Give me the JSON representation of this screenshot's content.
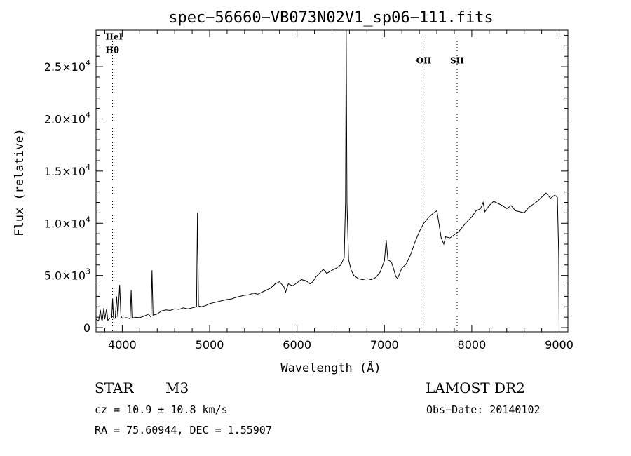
{
  "chart_data": {
    "type": "line",
    "title": "spec−56660−VB073N02V1_sp06−111.fits",
    "xlabel": "Wavelength (Å)",
    "ylabel": "Flux (relative)",
    "xlim": [
      3700,
      9100
    ],
    "ylim": [
      -400,
      28500
    ],
    "x_ticks": [
      {
        "value": 4000,
        "label": "4000"
      },
      {
        "value": 5000,
        "label": "5000"
      },
      {
        "value": 6000,
        "label": "6000"
      },
      {
        "value": 7000,
        "label": "7000"
      },
      {
        "value": 8000,
        "label": "8000"
      },
      {
        "value": 9000,
        "label": "9000"
      }
    ],
    "y_ticks": [
      {
        "value": 0,
        "mantissa": "0",
        "exponent": ""
      },
      {
        "value": 5000,
        "mantissa": "5.0×10",
        "exponent": "3"
      },
      {
        "value": 10000,
        "mantissa": "1.0×10",
        "exponent": "4"
      },
      {
        "value": 15000,
        "mantissa": "1.5×10",
        "exponent": "4"
      },
      {
        "value": 20000,
        "mantissa": "2.0×10",
        "exponent": "4"
      },
      {
        "value": 25000,
        "mantissa": "2.5×10",
        "exponent": "4"
      }
    ],
    "line_markers": [
      {
        "label": "HeI",
        "wavelength": 3889,
        "label_flux": 27600
      },
      {
        "label": "Hθ",
        "wavelength": 3889,
        "label_flux": 26300
      },
      {
        "label": "OII",
        "wavelength": 7444,
        "label_flux": 25300
      },
      {
        "label": "SII",
        "wavelength": 7832,
        "label_flux": 25300
      }
    ],
    "series": [
      {
        "points": [
          [
            3700,
            800
          ],
          [
            3730,
            650
          ],
          [
            3750,
            1700
          ],
          [
            3760,
            900
          ],
          [
            3770,
            600
          ],
          [
            3790,
            1900
          ],
          [
            3800,
            800
          ],
          [
            3820,
            1800
          ],
          [
            3835,
            700
          ],
          [
            3860,
            900
          ],
          [
            3880,
            950
          ],
          [
            3889,
            2800
          ],
          [
            3900,
            900
          ],
          [
            3920,
            900
          ],
          [
            3935,
            3000
          ],
          [
            3950,
            1000
          ],
          [
            3970,
            4100
          ],
          [
            3985,
            1100
          ],
          [
            4000,
            900
          ],
          [
            4050,
            950
          ],
          [
            4090,
            850
          ],
          [
            4102,
            3600
          ],
          [
            4112,
            900
          ],
          [
            4150,
            1000
          ],
          [
            4200,
            950
          ],
          [
            4250,
            1100
          ],
          [
            4300,
            1300
          ],
          [
            4330,
            1000
          ],
          [
            4340,
            5500
          ],
          [
            4352,
            1200
          ],
          [
            4400,
            1300
          ],
          [
            4450,
            1600
          ],
          [
            4500,
            1700
          ],
          [
            4550,
            1650
          ],
          [
            4600,
            1800
          ],
          [
            4650,
            1750
          ],
          [
            4700,
            1900
          ],
          [
            4750,
            1800
          ],
          [
            4800,
            1900
          ],
          [
            4850,
            2000
          ],
          [
            4861,
            11000
          ],
          [
            4872,
            2100
          ],
          [
            4900,
            2000
          ],
          [
            4950,
            2100
          ],
          [
            5000,
            2300
          ],
          [
            5050,
            2400
          ],
          [
            5100,
            2500
          ],
          [
            5150,
            2600
          ],
          [
            5200,
            2700
          ],
          [
            5250,
            2750
          ],
          [
            5300,
            2900
          ],
          [
            5350,
            3000
          ],
          [
            5400,
            3100
          ],
          [
            5450,
            3150
          ],
          [
            5500,
            3300
          ],
          [
            5550,
            3200
          ],
          [
            5600,
            3400
          ],
          [
            5650,
            3600
          ],
          [
            5700,
            3800
          ],
          [
            5750,
            4200
          ],
          [
            5800,
            4400
          ],
          [
            5850,
            3900
          ],
          [
            5870,
            3400
          ],
          [
            5900,
            4200
          ],
          [
            5950,
            4000
          ],
          [
            6000,
            4300
          ],
          [
            6050,
            4600
          ],
          [
            6100,
            4500
          ],
          [
            6150,
            4200
          ],
          [
            6180,
            4400
          ],
          [
            6220,
            4900
          ],
          [
            6280,
            5400
          ],
          [
            6300,
            5600
          ],
          [
            6340,
            5200
          ],
          [
            6400,
            5500
          ],
          [
            6450,
            5700
          ],
          [
            6500,
            6000
          ],
          [
            6540,
            6700
          ],
          [
            6555,
            12000
          ],
          [
            6563,
            28500
          ],
          [
            6572,
            12000
          ],
          [
            6590,
            6500
          ],
          [
            6620,
            5500
          ],
          [
            6650,
            5000
          ],
          [
            6700,
            4700
          ],
          [
            6750,
            4600
          ],
          [
            6800,
            4700
          ],
          [
            6850,
            4600
          ],
          [
            6900,
            4800
          ],
          [
            6950,
            5300
          ],
          [
            7000,
            6400
          ],
          [
            7020,
            8400
          ],
          [
            7040,
            6500
          ],
          [
            7080,
            6300
          ],
          [
            7100,
            5800
          ],
          [
            7130,
            4900
          ],
          [
            7150,
            4700
          ],
          [
            7200,
            5700
          ],
          [
            7250,
            6100
          ],
          [
            7300,
            7000
          ],
          [
            7350,
            8200
          ],
          [
            7400,
            9200
          ],
          [
            7450,
            10000
          ],
          [
            7500,
            10500
          ],
          [
            7550,
            10900
          ],
          [
            7600,
            11200
          ],
          [
            7620,
            10200
          ],
          [
            7650,
            8600
          ],
          [
            7680,
            8000
          ],
          [
            7700,
            8700
          ],
          [
            7750,
            8600
          ],
          [
            7800,
            8900
          ],
          [
            7850,
            9200
          ],
          [
            7900,
            9700
          ],
          [
            7950,
            10200
          ],
          [
            8000,
            10600
          ],
          [
            8050,
            11200
          ],
          [
            8100,
            11400
          ],
          [
            8130,
            12000
          ],
          [
            8150,
            11100
          ],
          [
            8200,
            11700
          ],
          [
            8250,
            12100
          ],
          [
            8300,
            11900
          ],
          [
            8350,
            11700
          ],
          [
            8400,
            11400
          ],
          [
            8450,
            11700
          ],
          [
            8500,
            11200
          ],
          [
            8550,
            11100
          ],
          [
            8600,
            11000
          ],
          [
            8650,
            11500
          ],
          [
            8700,
            11800
          ],
          [
            8750,
            12100
          ],
          [
            8800,
            12500
          ],
          [
            8850,
            12900
          ],
          [
            8900,
            12400
          ],
          [
            8950,
            12700
          ],
          [
            8980,
            12500
          ],
          [
            8995,
            7000
          ],
          [
            9000,
            -400
          ]
        ]
      }
    ]
  },
  "info": {
    "class_label": "STAR",
    "subclass": "M3",
    "survey": "LAMOST DR2",
    "cz": "cz = 10.9 ± 10.8 km/s",
    "obs_date": "Obs−Date: 20140102",
    "radec": "RA =  75.60944, DEC =   1.55907"
  }
}
